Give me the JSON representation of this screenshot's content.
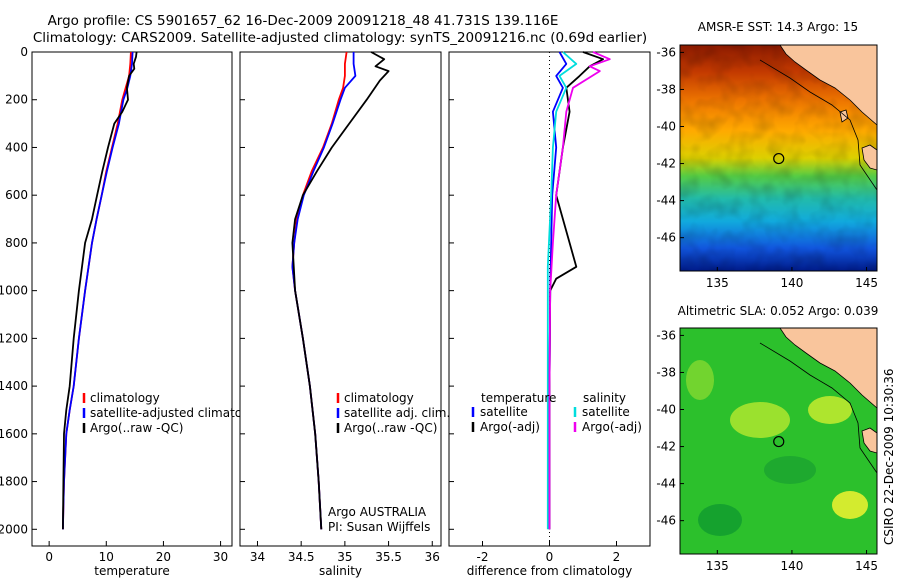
{
  "header": {
    "line1": "Argo profile: CS 5901657_62 16-Dec-2009 20091218_48 41.731S 139.116E",
    "line2": "Climatology: CARS2009. Satellite-adjusted climatology: synTS_20091216.nc (0.69d earlier)"
  },
  "side_label": "CSIRO 22-Dec-2009 10:30:36",
  "colors": {
    "climatology": "#ff0000",
    "satellite": "#0000ff",
    "argo": "#000000",
    "cyan": "#00dddd",
    "magenta": "#ee00ee"
  },
  "chart_data": [
    {
      "id": "temperature",
      "type": "line",
      "xlabel": "temperature",
      "xlim": [
        -3,
        32
      ],
      "xticks": [
        0,
        10,
        20,
        30
      ],
      "ylim": [
        0,
        2070
      ],
      "yticks": [
        0,
        200,
        400,
        600,
        800,
        1000,
        1200,
        1400,
        1600,
        1800,
        2000
      ],
      "y_reversed": true,
      "legend": {
        "position": "bottom-left",
        "entries": [
          "climatology",
          "satellite-adjusted climatology",
          "Argo(..raw -QC)"
        ]
      },
      "series": [
        {
          "name": "climatology",
          "color_key": "climatology",
          "x": [
            14.3,
            14.2,
            14.0,
            13.4,
            12.8,
            12.0,
            11.0,
            10.0,
            9.2,
            8.3,
            7.5,
            6.3,
            5.2,
            4.3,
            3.6,
            3.0,
            2.6,
            2.5,
            2.4
          ],
          "y": [
            0,
            50,
            100,
            150,
            200,
            300,
            400,
            500,
            600,
            700,
            800,
            1000,
            1200,
            1400,
            1500,
            1600,
            1800,
            1900,
            2000
          ]
        },
        {
          "name": "satellite-adjusted climatology",
          "color_key": "satellite",
          "x": [
            14.6,
            14.5,
            14.2,
            13.7,
            13.0,
            12.2,
            11.1,
            10.1,
            9.2,
            8.3,
            7.5,
            6.3,
            5.2,
            4.3,
            3.6,
            3.0,
            2.6,
            2.5,
            2.4
          ],
          "y": [
            0,
            50,
            100,
            150,
            200,
            300,
            400,
            500,
            600,
            700,
            800,
            1000,
            1200,
            1400,
            1500,
            1600,
            1800,
            1900,
            2000
          ]
        },
        {
          "name": "Argo(..raw -QC)",
          "color_key": "argo",
          "x": [
            15.3,
            15.2,
            14.8,
            14.9,
            14.0,
            13.6,
            13.8,
            12.8,
            11.4,
            10.3,
            9.3,
            8.4,
            7.5,
            6.3,
            5.2,
            4.3,
            3.6,
            3.0,
            2.6,
            2.5,
            2.4
          ],
          "y": [
            0,
            20,
            50,
            70,
            100,
            150,
            200,
            250,
            300,
            400,
            500,
            600,
            700,
            800,
            1000,
            1200,
            1400,
            1500,
            1600,
            1800,
            2000
          ]
        }
      ]
    },
    {
      "id": "salinity",
      "type": "line",
      "xlabel": "salinity",
      "xlim": [
        33.8,
        36.1
      ],
      "xticks": [
        34,
        34.5,
        35,
        35.5,
        36
      ],
      "xtick_labels": [
        "34",
        "34.5",
        "35",
        "35.5",
        "36"
      ],
      "ylim": [
        0,
        2070
      ],
      "y_reversed": true,
      "legend": {
        "position": "bottom-left",
        "entries": [
          "climatology",
          "satellite adj. clim.",
          "Argo(..raw -QC)"
        ]
      },
      "annotation": [
        "Argo AUSTRALIA",
        "PI: Susan Wijffels"
      ],
      "series": [
        {
          "name": "climatology",
          "color_key": "climatology",
          "x": [
            35.02,
            35.0,
            35.0,
            34.98,
            34.93,
            34.85,
            34.75,
            34.62,
            34.52,
            34.45,
            34.42,
            34.4,
            34.43,
            34.52,
            34.6,
            34.66,
            34.7,
            34.73
          ],
          "y": [
            0,
            50,
            100,
            150,
            200,
            300,
            400,
            500,
            600,
            700,
            800,
            900,
            1000,
            1200,
            1400,
            1600,
            1800,
            2000
          ]
        },
        {
          "name": "satellite adj. clim.",
          "color_key": "satellite",
          "x": [
            35.1,
            35.1,
            35.12,
            35.0,
            34.95,
            34.86,
            34.76,
            34.64,
            34.53,
            34.46,
            34.42,
            34.4,
            34.43,
            34.52,
            34.6,
            34.66,
            34.7,
            34.73
          ],
          "y": [
            0,
            50,
            100,
            150,
            200,
            300,
            400,
            500,
            600,
            700,
            800,
            900,
            1000,
            1200,
            1400,
            1600,
            1800,
            2000
          ]
        },
        {
          "name": "Argo(..raw -QC)",
          "color_key": "argo",
          "x": [
            35.3,
            35.45,
            35.35,
            35.5,
            35.4,
            35.25,
            35.05,
            34.85,
            34.68,
            34.52,
            34.43,
            34.4,
            34.43,
            34.52,
            34.6,
            34.66,
            34.7,
            34.73
          ],
          "y": [
            0,
            30,
            60,
            80,
            120,
            200,
            300,
            400,
            500,
            600,
            700,
            800,
            1000,
            1200,
            1400,
            1600,
            1800,
            2000
          ]
        }
      ]
    },
    {
      "id": "difference",
      "type": "line",
      "xlabel": "difference from climatology",
      "xlim": [
        -3,
        3
      ],
      "xticks": [
        -2,
        0,
        2
      ],
      "ylim": [
        0,
        2070
      ],
      "y_reversed": true,
      "legend": {
        "position": "bottom-left",
        "col1_title": "temperature",
        "col1": [
          "satellite",
          "Argo(-adj)"
        ],
        "col2_title": "salinity",
        "col2": [
          "satellite",
          "Argo(-adj)"
        ]
      },
      "series": [
        {
          "name": "temperature satellite",
          "color_key": "satellite",
          "x": [
            0.3,
            0.5,
            0.2,
            0.4,
            0.1,
            0.2,
            0.08,
            0.05,
            0.02,
            0.0,
            0.0,
            0.0
          ],
          "y": [
            0,
            50,
            100,
            150,
            250,
            400,
            600,
            800,
            1000,
            1400,
            1800,
            2000
          ]
        },
        {
          "name": "temperature Argo(-adj)",
          "color_key": "argo",
          "x": [
            1.0,
            1.6,
            1.2,
            0.9,
            0.5,
            0.6,
            0.4,
            0.2,
            0.6,
            0.8,
            0.2,
            0.02,
            0.0,
            0.0
          ],
          "y": [
            0,
            30,
            60,
            100,
            150,
            250,
            400,
            600,
            800,
            900,
            950,
            1000,
            1400,
            2000
          ]
        },
        {
          "name": "salinity satellite",
          "color_key": "cyan",
          "x": [
            0.4,
            0.8,
            0.3,
            0.5,
            0.2,
            0.1,
            0.05,
            -0.05,
            -0.05,
            -0.05,
            -0.05
          ],
          "y": [
            0,
            50,
            100,
            150,
            250,
            400,
            600,
            900,
            1200,
            1600,
            2000
          ]
        },
        {
          "name": "salinity Argo(-adj)",
          "color_key": "magenta",
          "x": [
            1.3,
            1.8,
            1.2,
            1.5,
            0.7,
            0.5,
            0.4,
            0.2,
            0.1,
            0.02,
            0.0,
            0.0
          ],
          "y": [
            0,
            30,
            60,
            80,
            150,
            250,
            400,
            600,
            800,
            1000,
            1400,
            2000
          ]
        }
      ]
    },
    {
      "id": "sst_map",
      "type": "heatmap",
      "title": "AMSR-E SST: 14.3 Argo: 15",
      "xlim": [
        132.5,
        145.7
      ],
      "ylim": [
        -47.8,
        -35.6
      ],
      "xticks": [
        135,
        140,
        145
      ],
      "yticks": [
        -36,
        -38,
        -40,
        -42,
        -44,
        -46
      ],
      "marker": {
        "lon": 139.116,
        "lat": -41.731
      }
    },
    {
      "id": "sla_map",
      "type": "heatmap",
      "title": "Altimetric SLA: 0.052 Argo: 0.039",
      "xlim": [
        132.5,
        145.7
      ],
      "ylim": [
        -47.8,
        -35.6
      ],
      "xticks": [
        135,
        140,
        145
      ],
      "yticks": [
        -36,
        -38,
        -40,
        -42,
        -44,
        -46
      ],
      "marker": {
        "lon": 139.116,
        "lat": -41.731
      }
    }
  ]
}
